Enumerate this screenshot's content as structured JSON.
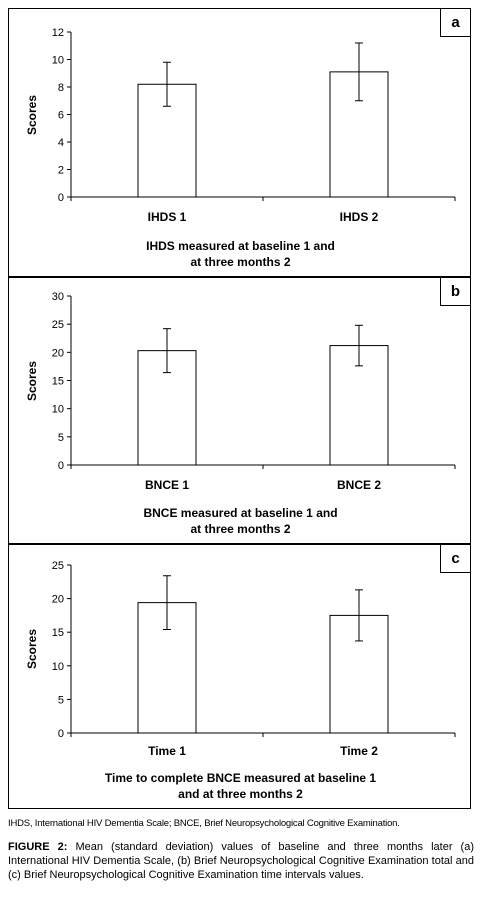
{
  "chart_data": [
    {
      "type": "bar",
      "panel_label": "a",
      "categories": [
        "IHDS 1",
        "IHDS 2"
      ],
      "values": [
        8.2,
        9.1
      ],
      "error": [
        1.6,
        2.1
      ],
      "ylabel": "Scores",
      "ylim": [
        0,
        12
      ],
      "yticks": [
        0,
        2,
        4,
        6,
        8,
        10,
        12
      ],
      "xlabel_lines": [
        "IHDS measured at baseline 1 and",
        "at three months 2"
      ]
    },
    {
      "type": "bar",
      "panel_label": "b",
      "categories": [
        "BNCE 1",
        "BNCE 2"
      ],
      "values": [
        20.3,
        21.2
      ],
      "error": [
        3.9,
        3.6
      ],
      "ylabel": "Scores",
      "ylim": [
        0,
        30
      ],
      "yticks": [
        0,
        5,
        10,
        15,
        20,
        25,
        30
      ],
      "xlabel_lines": [
        "BNCE measured at baseline 1 and",
        "at three months 2"
      ]
    },
    {
      "type": "bar",
      "panel_label": "c",
      "categories": [
        "Time 1",
        "Time 2"
      ],
      "values": [
        19.4,
        17.5
      ],
      "error": [
        4.0,
        3.8
      ],
      "ylabel": "Scores",
      "ylim": [
        0,
        25
      ],
      "yticks": [
        0,
        5,
        10,
        15,
        20,
        25
      ],
      "xlabel_lines": [
        "Time to complete BNCE measured at baseline 1",
        "and at three months 2"
      ]
    }
  ],
  "abbreviations": "IHDS, International HIV Dementia Scale; BNCE, Brief Neuropsychological Cognitive Examination.",
  "caption": {
    "label": "FIGURE 2:",
    "text": "Mean (standard deviation) values of baseline and three months later (a) International HIV Dementia Scale, (b) Brief Neuropsychological Cognitive Examination total and (c) Brief Neuropsychological Cognitive Examination time intervals values."
  }
}
